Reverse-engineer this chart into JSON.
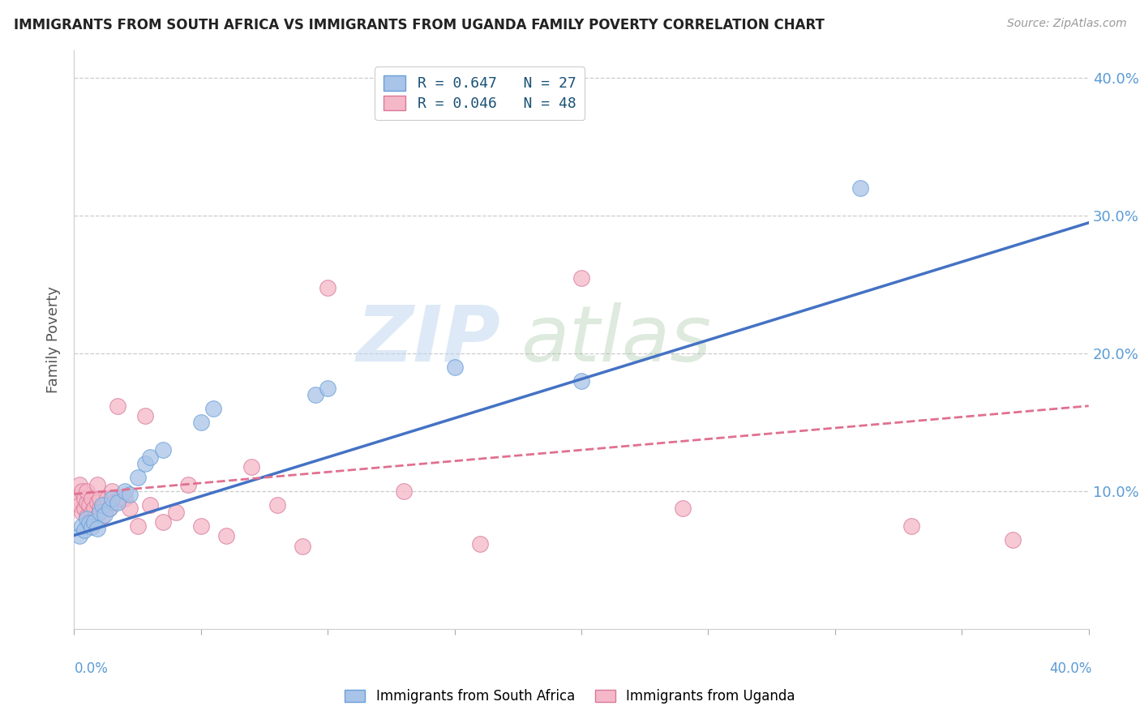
{
  "title": "IMMIGRANTS FROM SOUTH AFRICA VS IMMIGRANTS FROM UGANDA FAMILY POVERTY CORRELATION CHART",
  "source": "Source: ZipAtlas.com",
  "ylabel": "Family Poverty",
  "legend_entry1": "R = 0.647   N = 27",
  "legend_entry2": "R = 0.046   N = 48",
  "legend_label1": "Immigrants from South Africa",
  "legend_label2": "Immigrants from Uganda",
  "color_blue": "#a8c4e8",
  "color_pink": "#f5b8c8",
  "line_blue": "#4472c4",
  "line_pink": "#e07090",
  "watermark_zip": "ZIP",
  "watermark_atlas": "atlas",
  "xlim": [
    0.0,
    0.4
  ],
  "ylim": [
    0.0,
    0.42
  ],
  "ytick_vals": [
    0.1,
    0.2,
    0.3,
    0.4
  ],
  "ytick_labels": [
    "10.0%",
    "20.0%",
    "30.0%",
    "40.0%"
  ],
  "sa_x": [
    0.002,
    0.003,
    0.004,
    0.005,
    0.006,
    0.007,
    0.008,
    0.009,
    0.01,
    0.011,
    0.012,
    0.014,
    0.015,
    0.017,
    0.02,
    0.022,
    0.025,
    0.028,
    0.03,
    0.035,
    0.05,
    0.055,
    0.095,
    0.1,
    0.15,
    0.2,
    0.31
  ],
  "sa_y": [
    0.068,
    0.075,
    0.072,
    0.08,
    0.077,
    0.074,
    0.078,
    0.073,
    0.085,
    0.09,
    0.083,
    0.088,
    0.095,
    0.092,
    0.1,
    0.098,
    0.11,
    0.12,
    0.125,
    0.13,
    0.15,
    0.16,
    0.17,
    0.175,
    0.19,
    0.18,
    0.32
  ],
  "ug_x": [
    0.001,
    0.002,
    0.002,
    0.003,
    0.003,
    0.004,
    0.004,
    0.005,
    0.005,
    0.005,
    0.006,
    0.006,
    0.007,
    0.007,
    0.008,
    0.008,
    0.009,
    0.009,
    0.01,
    0.01,
    0.011,
    0.012,
    0.013,
    0.014,
    0.015,
    0.016,
    0.017,
    0.018,
    0.02,
    0.022,
    0.025,
    0.028,
    0.03,
    0.035,
    0.04,
    0.045,
    0.05,
    0.06,
    0.07,
    0.08,
    0.09,
    0.1,
    0.13,
    0.16,
    0.2,
    0.24,
    0.33,
    0.37
  ],
  "ug_y": [
    0.095,
    0.105,
    0.09,
    0.085,
    0.1,
    0.088,
    0.095,
    0.082,
    0.092,
    0.1,
    0.09,
    0.078,
    0.085,
    0.095,
    0.088,
    0.08,
    0.092,
    0.105,
    0.088,
    0.095,
    0.082,
    0.09,
    0.095,
    0.088,
    0.1,
    0.092,
    0.162,
    0.095,
    0.095,
    0.088,
    0.075,
    0.155,
    0.09,
    0.078,
    0.085,
    0.105,
    0.075,
    0.068,
    0.118,
    0.09,
    0.06,
    0.248,
    0.1,
    0.062,
    0.255,
    0.088,
    0.075,
    0.065
  ],
  "sa_line_x0": 0.0,
  "sa_line_y0": 0.068,
  "sa_line_x1": 0.4,
  "sa_line_y1": 0.295,
  "ug_line_x0": 0.0,
  "ug_line_y0": 0.098,
  "ug_line_x1": 0.4,
  "ug_line_y1": 0.162
}
